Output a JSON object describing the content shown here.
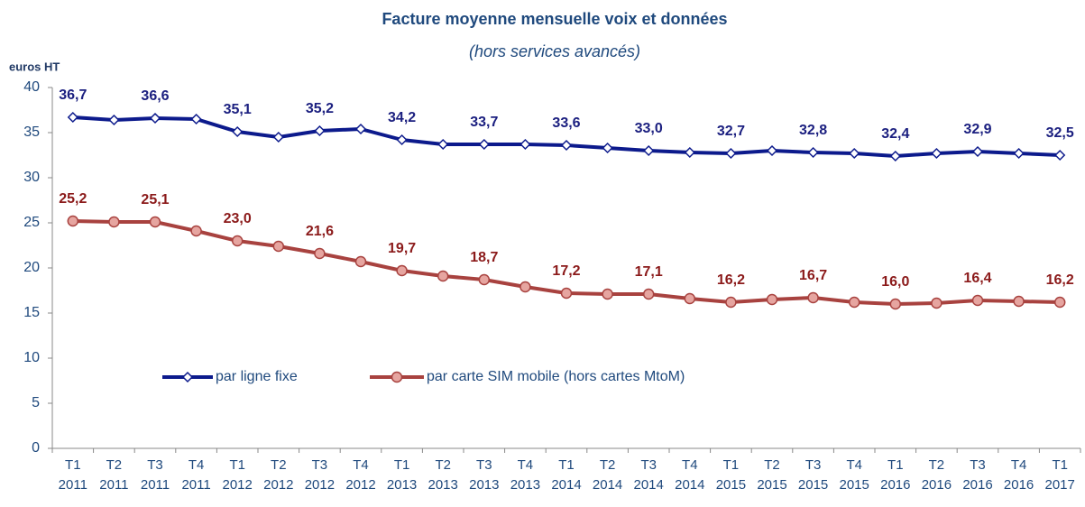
{
  "chart_data": {
    "type": "line",
    "title": "Facture moyenne mensuelle voix et données",
    "subtitle": "(hors services avancés)",
    "y_label": "euros HT",
    "categories": [
      [
        "T1",
        "2011"
      ],
      [
        "T2",
        "2011"
      ],
      [
        "T3",
        "2011"
      ],
      [
        "T4",
        "2011"
      ],
      [
        "T1",
        "2012"
      ],
      [
        "T2",
        "2012"
      ],
      [
        "T3",
        "2012"
      ],
      [
        "T4",
        "2012"
      ],
      [
        "T1",
        "2013"
      ],
      [
        "T2",
        "2013"
      ],
      [
        "T3",
        "2013"
      ],
      [
        "T4",
        "2013"
      ],
      [
        "T1",
        "2014"
      ],
      [
        "T2",
        "2014"
      ],
      [
        "T3",
        "2014"
      ],
      [
        "T4",
        "2014"
      ],
      [
        "T1",
        "2015"
      ],
      [
        "T2",
        "2015"
      ],
      [
        "T3",
        "2015"
      ],
      [
        "T4",
        "2015"
      ],
      [
        "T1",
        "2016"
      ],
      [
        "T2",
        "2016"
      ],
      [
        "T3",
        "2016"
      ],
      [
        "T4",
        "2016"
      ],
      [
        "T1",
        "2017"
      ]
    ],
    "ylim": [
      0,
      40
    ],
    "yticks": [
      0,
      5,
      10,
      15,
      20,
      25,
      30,
      35,
      40
    ],
    "grid": false,
    "legend": "center",
    "series": [
      {
        "name": "par ligne fixe",
        "color": "#0c1a8c",
        "label_color": "#1c2080",
        "marker": "diamond",
        "values": [
          36.7,
          36.4,
          36.6,
          36.5,
          35.1,
          34.5,
          35.2,
          35.4,
          34.2,
          33.7,
          33.7,
          33.7,
          33.6,
          33.3,
          33.0,
          32.8,
          32.7,
          33.0,
          32.8,
          32.7,
          32.4,
          32.7,
          32.9,
          32.7,
          32.5
        ],
        "value_labels": [
          "36,7",
          null,
          "36,6",
          null,
          "35,1",
          null,
          "35,2",
          null,
          "34,2",
          null,
          "33,7",
          null,
          "33,6",
          null,
          "33,0",
          null,
          "32,7",
          null,
          "32,8",
          null,
          "32,4",
          null,
          "32,9",
          null,
          "32,5"
        ]
      },
      {
        "name": "par carte SIM mobile (hors cartes MtoM)",
        "color": "#a8423f",
        "label_color": "#8b1a1a",
        "marker": "circle",
        "values": [
          25.2,
          25.1,
          25.1,
          24.1,
          23.0,
          22.4,
          21.6,
          20.7,
          19.7,
          19.1,
          18.7,
          17.9,
          17.2,
          17.1,
          17.1,
          16.6,
          16.2,
          16.5,
          16.7,
          16.2,
          16.0,
          16.1,
          16.4,
          16.3,
          16.2
        ],
        "value_labels": [
          "25,2",
          null,
          "25,1",
          null,
          "23,0",
          null,
          "21,6",
          null,
          "19,7",
          null,
          "18,7",
          null,
          "17,2",
          null,
          "17,1",
          null,
          "16,2",
          null,
          "16,7",
          null,
          "16,0",
          null,
          "16,4",
          null,
          "16,2"
        ]
      }
    ]
  }
}
